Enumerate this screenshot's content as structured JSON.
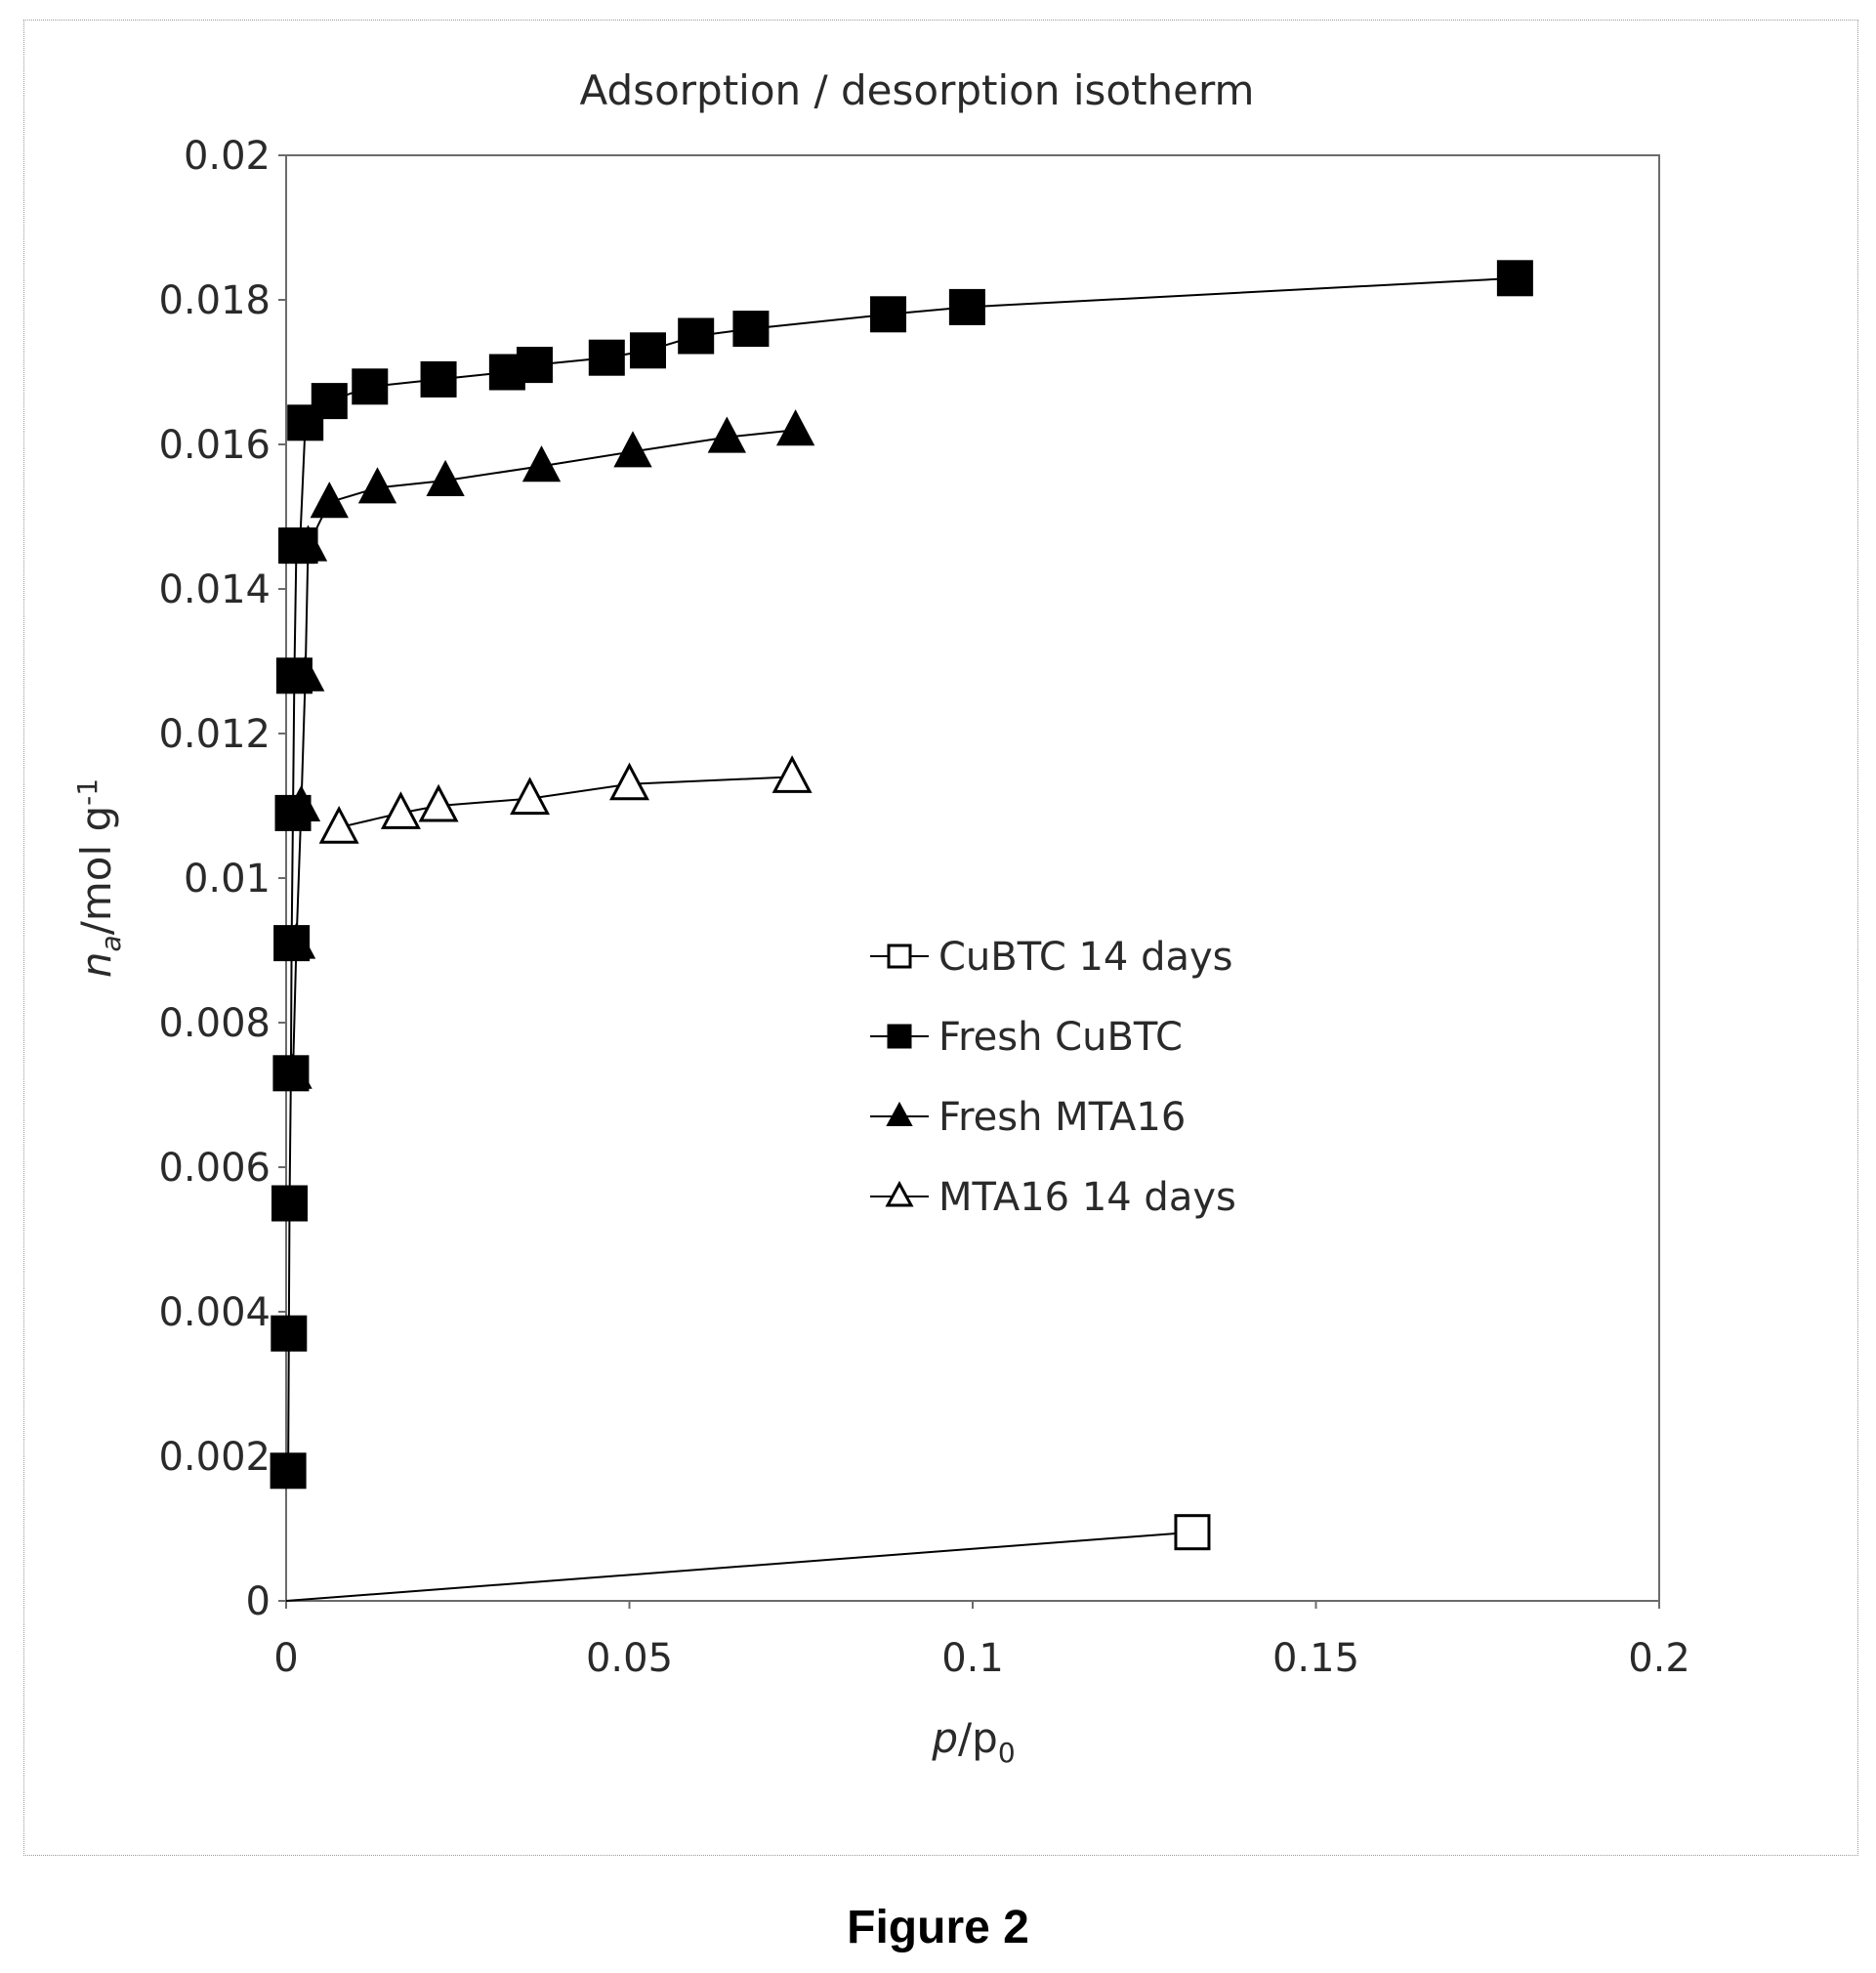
{
  "caption": "Figure 2",
  "chart_data": {
    "type": "scatter",
    "title": "Adsorption / desorption isotherm",
    "xlabel": "p/p0",
    "ylabel": "na/mol g-1",
    "xlim": [
      0,
      0.2
    ],
    "ylim": [
      0,
      0.02
    ],
    "x_ticks": [
      0,
      0.05,
      0.1,
      0.15,
      0.2
    ],
    "x_tick_labels": [
      "0",
      "0.05",
      "0.1",
      "0.15",
      "0.2"
    ],
    "y_ticks": [
      0,
      0.002,
      0.004,
      0.006,
      0.008,
      0.01,
      0.012,
      0.014,
      0.016,
      0.018,
      0.02
    ],
    "y_tick_labels": [
      "0",
      "0.002",
      "0.004",
      "0.006",
      "0.008",
      "0.01",
      "0.012",
      "0.014",
      "0.016",
      "0.018",
      "0.02"
    ],
    "grid": false,
    "legend_position": "center-right",
    "series": [
      {
        "name": "CuBTC 14 days",
        "marker": "square-open",
        "color": "#000000",
        "x": [
          0,
          0.132
        ],
        "y": [
          0,
          0.00095
        ]
      },
      {
        "name": "Fresh CuBTC",
        "marker": "square-filled",
        "color": "#000000",
        "x": [
          0.0003,
          0.0004,
          0.0005,
          0.0007,
          0.0008,
          0.001,
          0.0012,
          0.0015,
          0.002,
          0.0028,
          0.0063,
          0.0122,
          0.0222,
          0.0322,
          0.0362,
          0.0467,
          0.0527,
          0.0597,
          0.0677,
          0.0877,
          0.0992,
          0.179
        ],
        "y": [
          0.0018,
          0.0037,
          0.0055,
          0.0073,
          0.0091,
          0.0109,
          0.0128,
          0.0146,
          0.0146,
          0.0163,
          0.0166,
          0.0168,
          0.0169,
          0.017,
          0.0171,
          0.0172,
          0.0173,
          0.0175,
          0.0176,
          0.0178,
          0.0179,
          0.0183
        ]
      },
      {
        "name": "Fresh MTA16",
        "marker": "triangle-filled",
        "color": "#000000",
        "x": [
          0.001,
          0.0015,
          0.0022,
          0.0028,
          0.0032,
          0.0063,
          0.0133,
          0.0232,
          0.0372,
          0.0505,
          0.0642,
          0.0742
        ],
        "y": [
          0.0073,
          0.0091,
          0.011,
          0.0128,
          0.0146,
          0.0152,
          0.0154,
          0.0155,
          0.0157,
          0.0159,
          0.0161,
          0.0162
        ]
      },
      {
        "name": "MTA16 14 days",
        "marker": "triangle-open",
        "color": "#000000",
        "x": [
          0.0077,
          0.0167,
          0.0222,
          0.0355,
          0.05,
          0.0737
        ],
        "y": [
          0.0107,
          0.0109,
          0.011,
          0.0111,
          0.0113,
          0.0114
        ]
      }
    ]
  }
}
